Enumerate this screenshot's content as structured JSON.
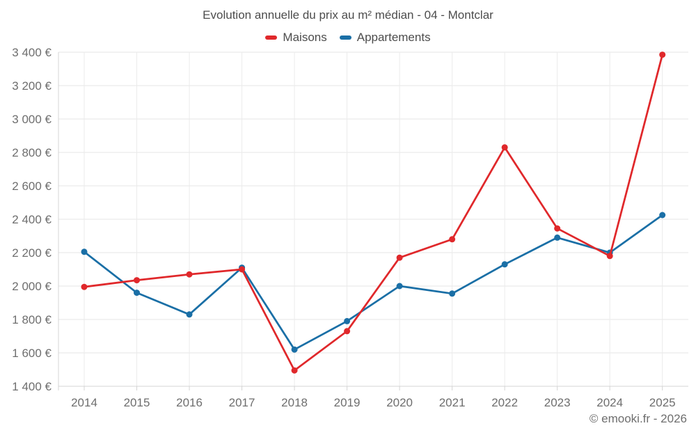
{
  "title": "Evolution annuelle du prix au m² médian - 04 - Montclar",
  "footer": "© emooki.fr - 2026",
  "chart_data": {
    "type": "line",
    "title": "Evolution annuelle du prix au m² médian - 04 - Montclar",
    "categories": [
      "2014",
      "2015",
      "2016",
      "2017",
      "2018",
      "2019",
      "2020",
      "2021",
      "2022",
      "2023",
      "2024",
      "2025"
    ],
    "series": [
      {
        "name": "Maisons",
        "color": "#e0282b",
        "values": [
          1995,
          2035,
          2070,
          2100,
          1495,
          1730,
          2170,
          2280,
          2830,
          2345,
          2180,
          3385
        ]
      },
      {
        "name": "Appartements",
        "color": "#1a6fa6",
        "values": [
          2205,
          1960,
          1830,
          2110,
          1620,
          1790,
          2000,
          1955,
          2130,
          2290,
          2200,
          2425
        ]
      }
    ],
    "xlabel": "",
    "ylabel": "",
    "ylim": [
      1400,
      3400
    ],
    "ytick_step": 200,
    "y_unit": "€",
    "grid": true,
    "legend_position": "top"
  },
  "colors": {
    "maisons": "#e0282b",
    "appartements": "#1a6fa6",
    "title_text": "#4c4c4c",
    "axis_text": "#6e6e6e",
    "h_gridline": "#e6e6e6",
    "v_gridline": "#ebebeb",
    "axis_line": "#d4d4d4",
    "background": "#ffffff"
  }
}
